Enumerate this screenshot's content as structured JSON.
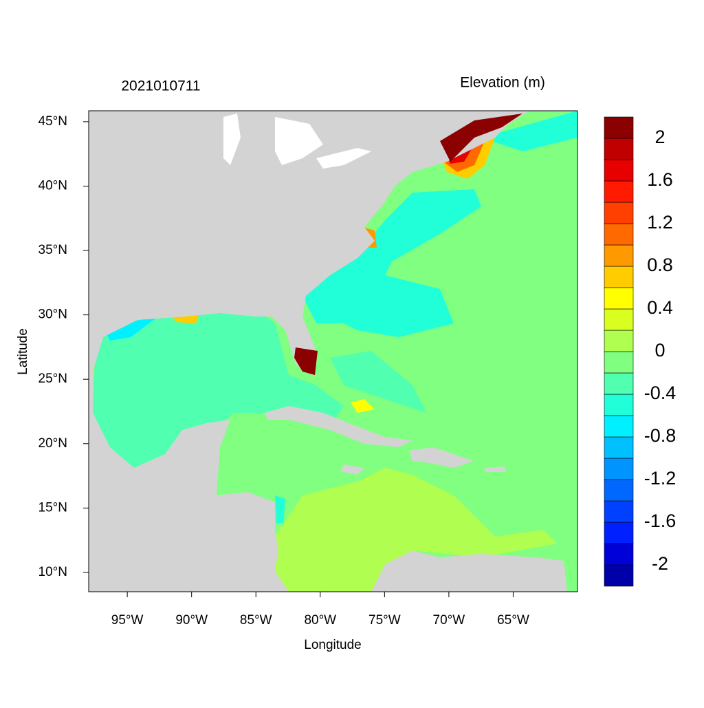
{
  "chart_data": {
    "type": "map",
    "title": "2021010711",
    "colorbar_title": "Elevation (m)",
    "x_label": "Longitude",
    "y_label": "Latitude",
    "xlim": [
      -98,
      -60
    ],
    "ylim": [
      8.5,
      45.85
    ],
    "xticks": [
      {
        "value": -95,
        "label": "95°W"
      },
      {
        "value": -90,
        "label": "90°W"
      },
      {
        "value": -85,
        "label": "85°W"
      },
      {
        "value": -80,
        "label": "80°W"
      },
      {
        "value": -75,
        "label": "75°W"
      },
      {
        "value": -70,
        "label": "70°W"
      },
      {
        "value": -65,
        "label": "65°W"
      }
    ],
    "yticks": [
      {
        "value": 10,
        "label": "10°N"
      },
      {
        "value": 15,
        "label": "15°N"
      },
      {
        "value": 20,
        "label": "20°N"
      },
      {
        "value": 25,
        "label": "25°N"
      },
      {
        "value": 30,
        "label": "30°N"
      },
      {
        "value": 35,
        "label": "35°N"
      },
      {
        "value": 40,
        "label": "40°N"
      },
      {
        "value": 45,
        "label": "45°N"
      }
    ],
    "colorbar": {
      "levels": [
        -2.2,
        -2.0,
        -1.8,
        -1.6,
        -1.4,
        -1.2,
        -1.0,
        -0.8,
        -0.6,
        -0.4,
        -0.2,
        0,
        0.2,
        0.4,
        0.6,
        0.8,
        1.0,
        1.2,
        1.4,
        1.6,
        1.8,
        2.0,
        2.2
      ],
      "colors": [
        "#0000a8",
        "#0000d8",
        "#0020ff",
        "#0040ff",
        "#0068ff",
        "#0094ff",
        "#00c0ff",
        "#00f0ff",
        "#20ffd8",
        "#50ffb0",
        "#80ff80",
        "#b0ff50",
        "#d8ff20",
        "#ffff00",
        "#ffcc00",
        "#ff9900",
        "#ff6a00",
        "#ff4000",
        "#ff1a00",
        "#e60000",
        "#c00000",
        "#8b0000"
      ],
      "ticks": [
        -2,
        -1.6,
        -1.2,
        -0.8,
        -0.4,
        0,
        0.4,
        0.8,
        1.2,
        1.6,
        2
      ]
    }
  }
}
